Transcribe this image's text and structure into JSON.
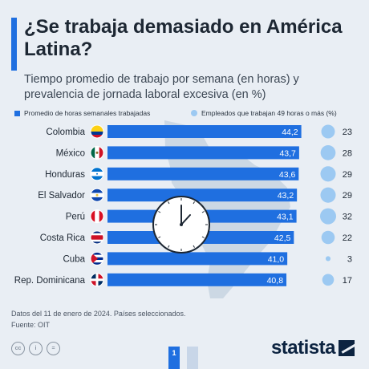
{
  "title": "¿Se trabaja demasiado en América Latina?",
  "subtitle": "Tiempo promedio de trabajo por semana (en horas) y prevalencia de jornada laboral excesiva (en %)",
  "legend": {
    "bars": "Promedio de horas semanales trabajadas",
    "dots": "Empleados que trabajan 49 horas o más (%)"
  },
  "chart_data": {
    "type": "bar",
    "orientation": "horizontal",
    "categories": [
      "Colombia",
      "México",
      "Honduras",
      "El Salvador",
      "Perú",
      "Costa Rica",
      "Cuba",
      "Rep. Dominicana"
    ],
    "series": [
      {
        "name": "Promedio de horas semanales trabajadas",
        "values": [
          44.2,
          43.7,
          43.6,
          43.2,
          43.1,
          42.5,
          41.0,
          40.8
        ],
        "labels": [
          "44,2",
          "43,7",
          "43,6",
          "43,2",
          "43,1",
          "42,5",
          "41,0",
          "40,8"
        ]
      },
      {
        "name": "Empleados que trabajan 49 horas o más (%)",
        "values": [
          23,
          28,
          29,
          29,
          32,
          22,
          3,
          17
        ]
      }
    ],
    "flags": [
      "colombia-flag-icon",
      "mexico-flag-icon",
      "honduras-flag-icon",
      "el-salvador-flag-icon",
      "peru-flag-icon",
      "costa-rica-flag-icon",
      "cuba-flag-icon",
      "dominican-republic-flag-icon"
    ],
    "xlim": [
      0,
      45
    ],
    "colors": {
      "bar": "#1f6fe0",
      "dot": "#9cc9f2",
      "accent": "#1f6fe0"
    },
    "decoration": "clock-icon"
  },
  "footer": {
    "note": "Datos del 11 de enero de 2024. Países seleccionados.",
    "source": "Fuente: OIT"
  },
  "pagination": {
    "current": "1"
  },
  "brand": "statista"
}
